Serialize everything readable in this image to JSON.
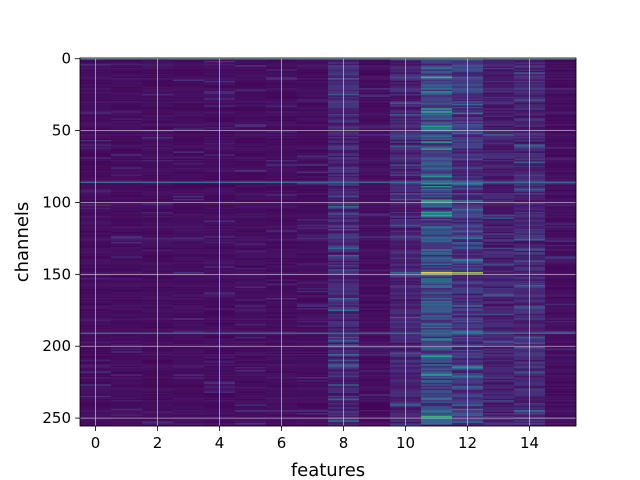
{
  "chart_data": {
    "type": "heatmap",
    "xlabel": "features",
    "ylabel": "channels",
    "x_range": [
      -0.5,
      15.5
    ],
    "y_range": [
      -0.5,
      255.5
    ],
    "y_inverted": true,
    "n_features": 16,
    "n_channels": 256,
    "x_ticks": [
      0,
      2,
      4,
      6,
      8,
      10,
      12,
      14
    ],
    "y_ticks": [
      0,
      50,
      100,
      150,
      200,
      250
    ],
    "grid": true,
    "colormap": "viridis",
    "highlights": [
      {
        "feature": 11,
        "channel": 149,
        "value": 1.0
      },
      {
        "feature": 12,
        "channel": 149,
        "value": 0.88
      },
      {
        "feature": 11,
        "channel": 58,
        "value": 0.6
      },
      {
        "feature": 11,
        "channel": 63,
        "value": 0.55
      },
      {
        "feature": 11,
        "channel": 195,
        "value": 0.5
      },
      {
        "feature": 12,
        "channel": 99,
        "value": 0.45
      },
      {
        "feature": 12,
        "channel": 244,
        "value": 0.4
      },
      {
        "feature": 11,
        "channel": 100,
        "value": 0.4
      },
      {
        "feature": 11,
        "channel": 110,
        "value": 0.35
      },
      {
        "feature": 10,
        "channel": 149,
        "value": 0.38
      },
      {
        "feature": 11,
        "channel": 96,
        "value": 0.3
      },
      {
        "feature": 11,
        "channel": 176,
        "value": 0.32
      },
      {
        "feature": 11,
        "channel": 202,
        "value": 0.28
      }
    ],
    "highlight_rows": [
      {
        "channel": 0,
        "value": 0.45
      },
      {
        "channel": 86,
        "value": 0.38
      },
      {
        "channel": 191,
        "value": 0.36
      }
    ],
    "bright_columns": [
      {
        "feature": 8,
        "level": 0.16
      },
      {
        "feature": 10,
        "level": 0.14
      },
      {
        "feature": 11,
        "level": 0.32
      },
      {
        "feature": 12,
        "level": 0.22
      },
      {
        "feature": 13,
        "level": 0.13
      },
      {
        "feature": 14,
        "level": 0.16
      }
    ]
  }
}
